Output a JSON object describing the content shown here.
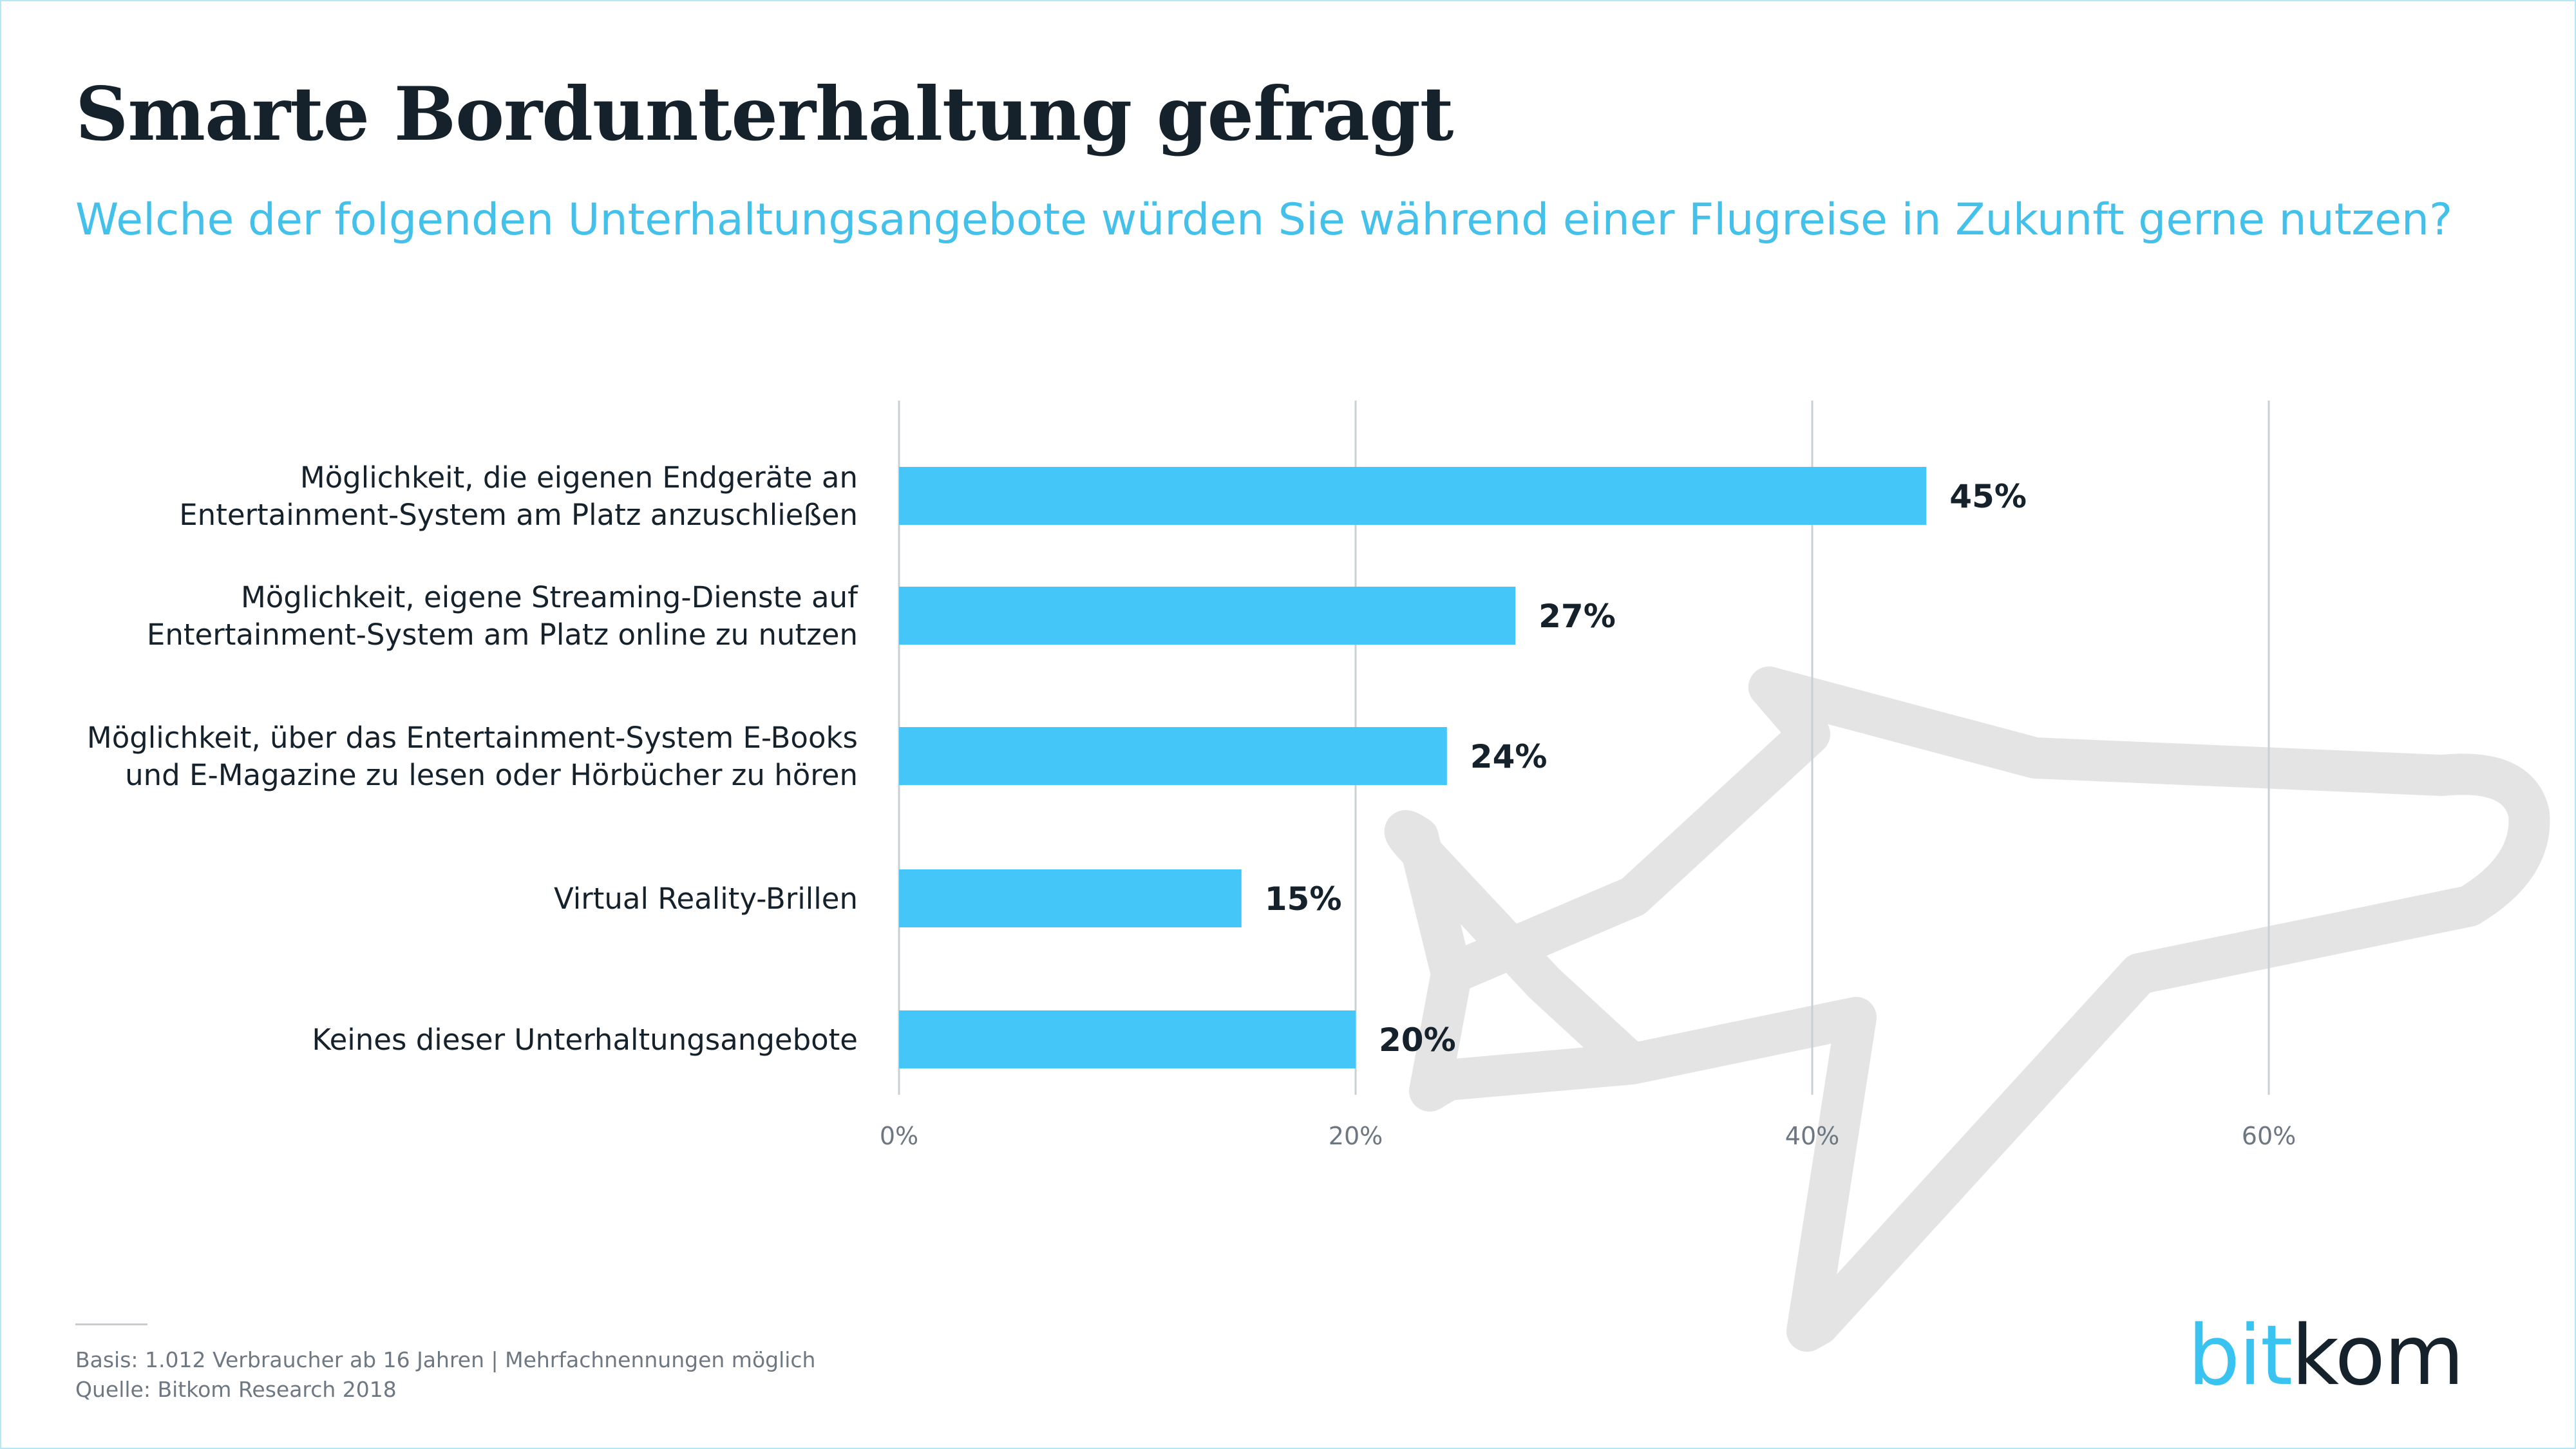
{
  "header": {
    "title": "Smarte Bordunterhaltung gefragt",
    "subtitle": "Welche der folgenden Unterhaltungsangebote würden Sie während einer Flugreise in Zukunft gerne nutzen?"
  },
  "chart_data": {
    "type": "bar",
    "orientation": "horizontal",
    "title": "Smarte Bordunterhaltung gefragt",
    "subtitle": "Welche der folgenden Unterhaltungsangebote würden Sie während einer Flugreise in Zukunft gerne nutzen?",
    "categories": [
      [
        "Möglichkeit, die eigenen Endgeräte an",
        "Entertainment-System am Platz anzuschließen"
      ],
      [
        "Möglichkeit, eigene Streaming-Dienste auf",
        "Entertainment-System am Platz online zu nutzen"
      ],
      [
        "Möglichkeit, über das Entertainment-System E-Books",
        "und E-Magazine zu lesen oder Hörbücher zu hören"
      ],
      [
        "Virtual Reality-Brillen"
      ],
      [
        "Keines dieser Unterhaltungsangebote"
      ]
    ],
    "values": [
      45,
      27,
      24,
      15,
      20
    ],
    "value_labels": [
      "45%",
      "27%",
      "24%",
      "15%",
      "20%"
    ],
    "xlim": [
      0,
      60
    ],
    "x_ticks": [
      0,
      20,
      40,
      60
    ],
    "x_tick_labels": [
      "0%",
      "20%",
      "40%",
      "60%"
    ],
    "grid": true,
    "bar_color": "#45c6f8",
    "grid_color": "#c9d0d3",
    "tick_label_color": "#6d7781",
    "category_label_color": "#16222b",
    "value_label_color": "#16222b",
    "watermark_icon": "airplane-icon",
    "watermark_color": "#e4e4e4"
  },
  "footer": {
    "basis": "Basis: 1.012 Verbraucher ab 16 Jahren | Mehrfachnennungen möglich",
    "source": "Quelle: Bitkom Research 2018",
    "logo_part_a": "bit",
    "logo_part_b": "kom"
  }
}
